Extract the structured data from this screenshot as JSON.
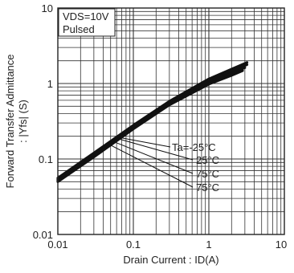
{
  "chart_data": {
    "type": "line",
    "x_scale": "log",
    "y_scale": "log",
    "xlim": [
      0.01,
      10
    ],
    "ylim": [
      0.01,
      10
    ],
    "grid": true,
    "xlabel": "Drain Current : ID(A)",
    "ylabel_line1": "Forward Transfer Admittance",
    "ylabel_line2": ": |Yfs| (S)",
    "x_ticks": [
      "0.01",
      "0.1",
      "1",
      "10"
    ],
    "y_ticks": [
      "0.01",
      "0.1",
      "1",
      "10"
    ],
    "condition_box": [
      "VDS=10V",
      "Pulsed"
    ],
    "series": [
      {
        "name": "Ta=-25°C",
        "x": [
          0.01,
          0.03,
          0.1,
          0.3,
          1,
          2,
          3.2
        ],
        "y": [
          0.056,
          0.12,
          0.28,
          0.58,
          1.15,
          1.55,
          1.9
        ]
      },
      {
        "name": "25°C",
        "x": [
          0.01,
          0.03,
          0.1,
          0.3,
          1,
          2,
          3.2
        ],
        "y": [
          0.054,
          0.115,
          0.27,
          0.56,
          1.08,
          1.45,
          1.78
        ]
      },
      {
        "name": "75°C",
        "x": [
          0.01,
          0.03,
          0.1,
          0.3,
          1,
          2,
          3.0
        ],
        "y": [
          0.052,
          0.11,
          0.26,
          0.54,
          1.02,
          1.36,
          1.62
        ]
      },
      {
        "name": "75°C",
        "x": [
          0.01,
          0.03,
          0.1,
          0.3,
          1,
          2,
          2.8
        ],
        "y": [
          0.05,
          0.106,
          0.25,
          0.52,
          0.98,
          1.28,
          1.48
        ]
      }
    ]
  }
}
